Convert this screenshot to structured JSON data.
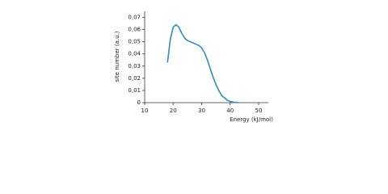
{
  "chart_data": {
    "type": "line",
    "x_label": "Energy (kJ/mol)",
    "y_label": "site number (a.u.)",
    "x": [
      18,
      19,
      20,
      21,
      22,
      23,
      24,
      25,
      26,
      27,
      28,
      29,
      30,
      31,
      32,
      33,
      34,
      35,
      36,
      37,
      38,
      39,
      40,
      41,
      42,
      43
    ],
    "series": [
      {
        "color": "#2a8fbd",
        "values": [
          0.033,
          0.052,
          0.062,
          0.064,
          0.062,
          0.057,
          0.053,
          0.051,
          0.05,
          0.049,
          0.048,
          0.047,
          0.045,
          0.041,
          0.035,
          0.028,
          0.021,
          0.015,
          0.01,
          0.006,
          0.004,
          0.002,
          0.001,
          0.0005,
          0.0002,
          0
        ]
      }
    ],
    "xlim": [
      10,
      53.4
    ],
    "xticks": [
      10,
      20,
      30,
      40,
      50
    ],
    "ylim": [
      0,
      0.075
    ],
    "yticks": [
      0,
      {
        "value": 0.01,
        "label": "0,01"
      },
      {
        "value": 0.02,
        "label": "0,02"
      },
      {
        "value": 0.03,
        "label": "0,03"
      },
      {
        "value": 0.04,
        "label": "0,04"
      },
      {
        "value": 0.05,
        "label": "0,05"
      },
      {
        "value": 0.06,
        "label": "0,06"
      },
      {
        "value": 0.07,
        "label": "0,07"
      }
    ],
    "grid": false
  }
}
